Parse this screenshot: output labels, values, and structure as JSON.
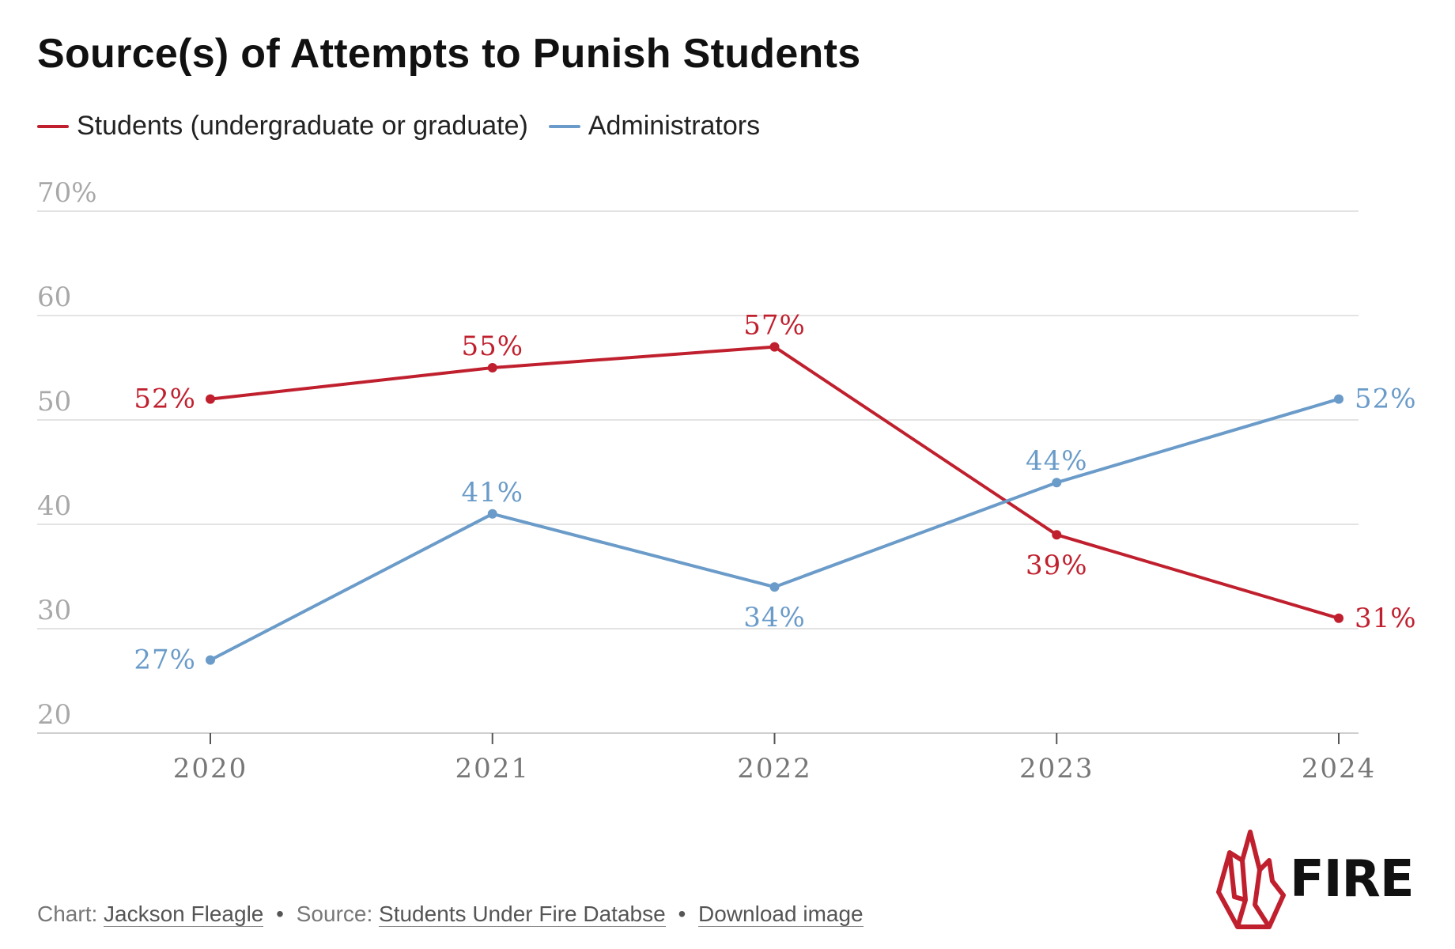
{
  "title": "Source(s) of Attempts to Punish Students",
  "legend": [
    {
      "label": "Students (undergraduate or graduate)",
      "color": "#c0202e"
    },
    {
      "label": "Administrators",
      "color": "#6a9bc9"
    }
  ],
  "chart_data": {
    "type": "line",
    "x": [
      "2020",
      "2021",
      "2022",
      "2023",
      "2024"
    ],
    "series": [
      {
        "name": "Students (undergraduate or graduate)",
        "values": [
          52,
          55,
          57,
          39,
          31
        ],
        "color": "#c0202e"
      },
      {
        "name": "Administrators",
        "values": [
          27,
          41,
          34,
          44,
          52
        ],
        "color": "#6a9bc9"
      }
    ],
    "y_ticks": [
      "70%",
      "60",
      "50",
      "40",
      "30",
      "20"
    ],
    "y_tick_values": [
      70,
      60,
      50,
      40,
      30,
      20
    ],
    "ylim": [
      20,
      70
    ],
    "grid": true,
    "data_labels": true,
    "legend_position": "top-left"
  },
  "footer": {
    "chart_prefix": "Chart:",
    "author": "Jackson Fleagle",
    "separator": "•",
    "source_prefix": "Source:",
    "source": "Students Under Fire Databse",
    "download": "Download image"
  },
  "logo": {
    "text": "FIRE",
    "icon": "fire-flame-logo",
    "color": "#c0202e"
  }
}
